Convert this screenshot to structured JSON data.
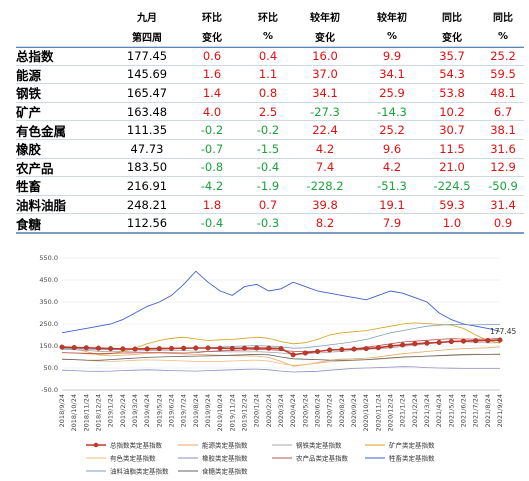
{
  "table": {
    "header_row1": [
      "",
      "九月",
      "环比",
      "环比",
      "较年初",
      "较年初",
      "同比",
      "同比"
    ],
    "header_row2": [
      "",
      "第四周",
      "变化",
      "%",
      "变化",
      "%",
      "变化",
      "%"
    ],
    "rows": [
      {
        "name": "总指数",
        "values": [
          "177.45",
          "0.6",
          "0.4",
          "16.0",
          "9.9",
          "35.7",
          "25.2"
        ]
      },
      {
        "name": "能源",
        "values": [
          "145.69",
          "1.6",
          "1.1",
          "37.0",
          "34.1",
          "54.3",
          "59.5"
        ]
      },
      {
        "name": "钢铁",
        "values": [
          "165.47",
          "1.4",
          "0.8",
          "34.1",
          "25.9",
          "53.8",
          "48.1"
        ]
      },
      {
        "name": "矿产",
        "values": [
          "163.48",
          "4.0",
          "2.5",
          "-27.3",
          "-14.3",
          "10.2",
          "6.7"
        ]
      },
      {
        "name": "有色金属",
        "values": [
          "111.35",
          "-0.2",
          "-0.2",
          "22.4",
          "25.2",
          "30.7",
          "38.1"
        ]
      },
      {
        "name": "橡胶",
        "values": [
          "47.73",
          "-0.7",
          "-1.5",
          "4.2",
          "9.6",
          "11.5",
          "31.6"
        ]
      },
      {
        "name": "农产品",
        "values": [
          "183.50",
          "-0.8",
          "-0.4",
          "7.4",
          "4.2",
          "21.0",
          "12.9"
        ]
      },
      {
        "name": "牲畜",
        "values": [
          "216.91",
          "-4.2",
          "-1.9",
          "-228.2",
          "-51.3",
          "-224.5",
          "-50.9"
        ]
      },
      {
        "name": "油料油脂",
        "values": [
          "248.21",
          "1.8",
          "0.7",
          "39.8",
          "19.1",
          "59.3",
          "31.4"
        ]
      },
      {
        "name": "食糖",
        "values": [
          "112.56",
          "-0.4",
          "-0.3",
          "8.2",
          "7.9",
          "1.0",
          "0.9"
        ]
      }
    ],
    "colors": {
      "positive": "#e01010",
      "negative": "#1aa33a",
      "header_rule": "#5b86b8"
    }
  },
  "chart_data": {
    "type": "line",
    "ylim": [
      -50,
      550
    ],
    "yticks": [
      "-50.0",
      "50.0",
      "150.0",
      "250.0",
      "350.0",
      "450.0",
      "550.0"
    ],
    "ytick_values": [
      -50,
      50,
      150,
      250,
      350,
      450,
      550
    ],
    "x": [
      "2018/9/24",
      "2018/10/24",
      "2018/11/24",
      "2018/12/24",
      "2019/1/24",
      "2019/2/24",
      "2019/3/24",
      "2019/4/24",
      "2019/5/24",
      "2019/6/24",
      "2019/7/24",
      "2019/8/24",
      "2019/9/24",
      "2019/10/24",
      "2019/11/24",
      "2019/12/24",
      "2020/1/24",
      "2020/2/24",
      "2020/3/24",
      "2020/4/24",
      "2020/5/24",
      "2020/6/24",
      "2020/7/24",
      "2020/8/24",
      "2020/9/24",
      "2020/10/24",
      "2020/11/24",
      "2020/12/24",
      "2021/1/24",
      "2021/2/24",
      "2021/3/24",
      "2021/4/24",
      "2021/5/24",
      "2021/6/24",
      "2021/7/24",
      "2021/8/24",
      "2021/9/24"
    ],
    "end_label": "177.45",
    "legend_position": "bottom",
    "series": [
      {
        "name": "总指数类定基指数",
        "color": "#c0392b",
        "marker": true,
        "values": [
          145,
          143,
          142,
          140,
          138,
          137,
          136,
          137,
          138,
          139,
          140,
          141,
          141,
          140,
          139,
          140,
          141,
          140,
          138,
          110,
          118,
          125,
          132,
          134,
          136,
          138,
          142,
          150,
          155,
          160,
          163,
          166,
          170,
          172,
          174,
          175,
          177
        ]
      },
      {
        "name": "能源类定基指数",
        "color": "#e6a86a",
        "values": [
          140,
          135,
          125,
          110,
          105,
          108,
          112,
          116,
          118,
          116,
          114,
          112,
          110,
          108,
          106,
          105,
          104,
          98,
          80,
          58,
          65,
          75,
          85,
          90,
          92,
          95,
          100,
          108,
          115,
          120,
          125,
          130,
          135,
          138,
          140,
          142,
          146
        ]
      },
      {
        "name": "钢铁类定基指数",
        "color": "#a9a9a9",
        "values": [
          135,
          133,
          130,
          126,
          124,
          125,
          127,
          129,
          131,
          130,
          129,
          127,
          125,
          124,
          123,
          123,
          124,
          122,
          118,
          112,
          114,
          118,
          122,
          126,
          130,
          134,
          138,
          142,
          148,
          154,
          160,
          166,
          172,
          170,
          166,
          164,
          165
        ]
      },
      {
        "name": "矿产类定基指数",
        "color": "#d4a017",
        "values": [
          120,
          118,
          115,
          112,
          115,
          125,
          140,
          160,
          175,
          185,
          190,
          182,
          175,
          178,
          180,
          185,
          190,
          185,
          170,
          160,
          165,
          180,
          200,
          210,
          215,
          220,
          230,
          240,
          250,
          255,
          252,
          248,
          245,
          230,
          200,
          175,
          163
        ]
      },
      {
        "name": "有色类定基指数",
        "color": "#f0b97a",
        "values": [
          90,
          88,
          85,
          82,
          80,
          82,
          85,
          87,
          86,
          84,
          82,
          80,
          79,
          80,
          82,
          84,
          86,
          82,
          70,
          62,
          66,
          72,
          78,
          82,
          85,
          87,
          90,
          94,
          98,
          101,
          104,
          107,
          110,
          112,
          113,
          112,
          111
        ]
      },
      {
        "name": "橡胶类定基指数",
        "color": "#8e8ec7",
        "values": [
          40,
          38,
          36,
          35,
          36,
          38,
          40,
          42,
          40,
          38,
          37,
          36,
          38,
          40,
          42,
          44,
          45,
          42,
          36,
          32,
          33,
          35,
          40,
          44,
          48,
          50,
          52,
          54,
          56,
          55,
          52,
          50,
          49,
          48,
          48,
          48,
          48
        ]
      },
      {
        "name": "农产品类定基指数",
        "color": "#c0504d",
        "values": [
          120,
          118,
          117,
          116,
          117,
          118,
          119,
          120,
          120,
          119,
          118,
          120,
          125,
          128,
          130,
          132,
          134,
          133,
          130,
          126,
          125,
          127,
          130,
          134,
          138,
          144,
          152,
          160,
          168,
          172,
          176,
          180,
          183,
          182,
          181,
          182,
          184
        ]
      },
      {
        "name": "牲畜类定基指数",
        "color": "#3e5fcf",
        "values": [
          210,
          220,
          230,
          240,
          250,
          270,
          300,
          330,
          350,
          380,
          430,
          490,
          440,
          400,
          380,
          420,
          430,
          400,
          410,
          440,
          420,
          400,
          390,
          380,
          370,
          360,
          380,
          400,
          390,
          370,
          350,
          300,
          270,
          250,
          240,
          230,
          217
        ]
      },
      {
        "name": "油料油脂类定基指数",
        "color": "#7f9fb8",
        "values": [
          140,
          138,
          136,
          134,
          133,
          135,
          138,
          140,
          141,
          140,
          139,
          140,
          142,
          145,
          148,
          150,
          152,
          150,
          146,
          140,
          142,
          148,
          155,
          162,
          170,
          180,
          195,
          210,
          220,
          230,
          240,
          245,
          248,
          247,
          246,
          247,
          248
        ]
      },
      {
        "name": "食糖类定基指数",
        "color": "#606060",
        "values": [
          90,
          88,
          86,
          85,
          88,
          92,
          95,
          98,
          100,
          102,
          103,
          104,
          105,
          106,
          108,
          110,
          112,
          110,
          100,
          92,
          90,
          88,
          86,
          85,
          86,
          88,
          92,
          96,
          100,
          102,
          104,
          106,
          108,
          110,
          111,
          112,
          113
        ]
      }
    ]
  }
}
